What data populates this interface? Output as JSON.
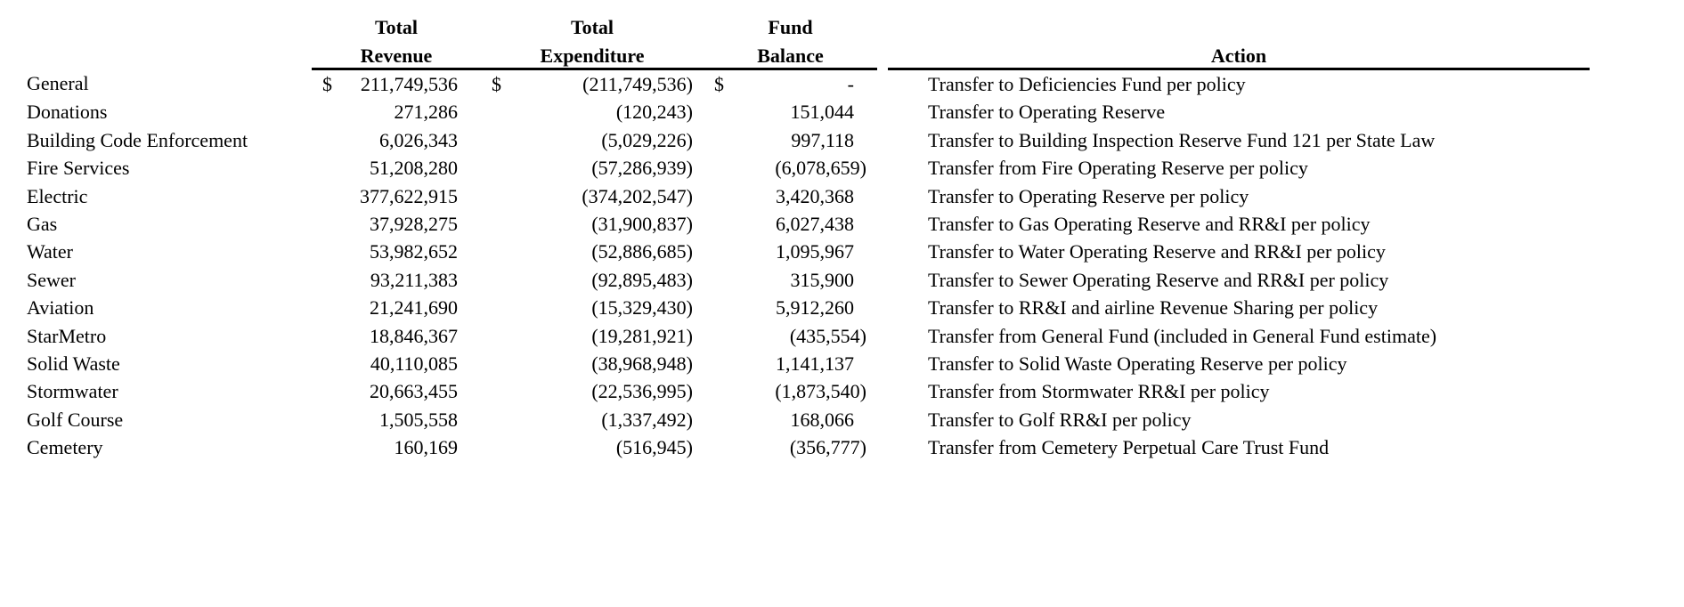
{
  "colors": {
    "text": "#000000",
    "background": "#ffffff",
    "rule": "#000000"
  },
  "table": {
    "currency_symbol": "$",
    "headers": {
      "revenue_line1": "Total",
      "revenue_line2": "Revenue",
      "expenditure_line1": "Total",
      "expenditure_line2": "Expenditure",
      "balance_line1": "Fund",
      "balance_line2": "Balance",
      "action": "Action"
    },
    "rows": [
      {
        "fund": "General",
        "revenue": "211,749,536",
        "expenditure": "(211,749,536)",
        "balance": "-",
        "show_dollar": true,
        "action": "Transfer to Deficiencies Fund per policy"
      },
      {
        "fund": "Donations",
        "revenue": "271,286",
        "expenditure": "(120,243)",
        "balance": "151,044",
        "show_dollar": false,
        "action": "Transfer to Operating Reserve"
      },
      {
        "fund": "Building Code Enforcement",
        "revenue": "6,026,343",
        "expenditure": "(5,029,226)",
        "balance": "997,118",
        "show_dollar": false,
        "action": "Transfer to Building Inspection Reserve Fund 121 per State Law"
      },
      {
        "fund": "Fire Services",
        "revenue": "51,208,280",
        "expenditure": "(57,286,939)",
        "balance": "(6,078,659)",
        "show_dollar": false,
        "action": "Transfer from Fire Operating Reserve per policy"
      },
      {
        "fund": "Electric",
        "revenue": "377,622,915",
        "expenditure": "(374,202,547)",
        "balance": "3,420,368",
        "show_dollar": false,
        "action": "Transfer to Operating Reserve per policy"
      },
      {
        "fund": "Gas",
        "revenue": "37,928,275",
        "expenditure": "(31,900,837)",
        "balance": "6,027,438",
        "show_dollar": false,
        "action": "Transfer to Gas Operating Reserve and RR&I per policy"
      },
      {
        "fund": "Water",
        "revenue": "53,982,652",
        "expenditure": "(52,886,685)",
        "balance": "1,095,967",
        "show_dollar": false,
        "action": "Transfer to Water Operating Reserve and RR&I per policy"
      },
      {
        "fund": "Sewer",
        "revenue": "93,211,383",
        "expenditure": "(92,895,483)",
        "balance": "315,900",
        "show_dollar": false,
        "action": "Transfer to Sewer Operating Reserve and RR&I per policy"
      },
      {
        "fund": "Aviation",
        "revenue": "21,241,690",
        "expenditure": "(15,329,430)",
        "balance": "5,912,260",
        "show_dollar": false,
        "action": "Transfer to RR&I and airline Revenue Sharing per policy"
      },
      {
        "fund": "StarMetro",
        "revenue": "18,846,367",
        "expenditure": "(19,281,921)",
        "balance": "(435,554)",
        "show_dollar": false,
        "action": "Transfer from General Fund (included in General Fund estimate)"
      },
      {
        "fund": "Solid Waste",
        "revenue": "40,110,085",
        "expenditure": "(38,968,948)",
        "balance": "1,141,137",
        "show_dollar": false,
        "action": "Transfer to Solid Waste Operating Reserve per policy"
      },
      {
        "fund": "Stormwater",
        "revenue": "20,663,455",
        "expenditure": "(22,536,995)",
        "balance": "(1,873,540)",
        "show_dollar": false,
        "action": "Transfer from Stormwater RR&I per policy"
      },
      {
        "fund": "Golf Course",
        "revenue": "1,505,558",
        "expenditure": "(1,337,492)",
        "balance": "168,066",
        "show_dollar": false,
        "action": "Transfer to Golf RR&I per policy"
      },
      {
        "fund": "Cemetery",
        "revenue": "160,169",
        "expenditure": "(516,945)",
        "balance": "(356,777)",
        "show_dollar": false,
        "action": "Transfer from Cemetery Perpetual Care Trust Fund"
      }
    ]
  }
}
